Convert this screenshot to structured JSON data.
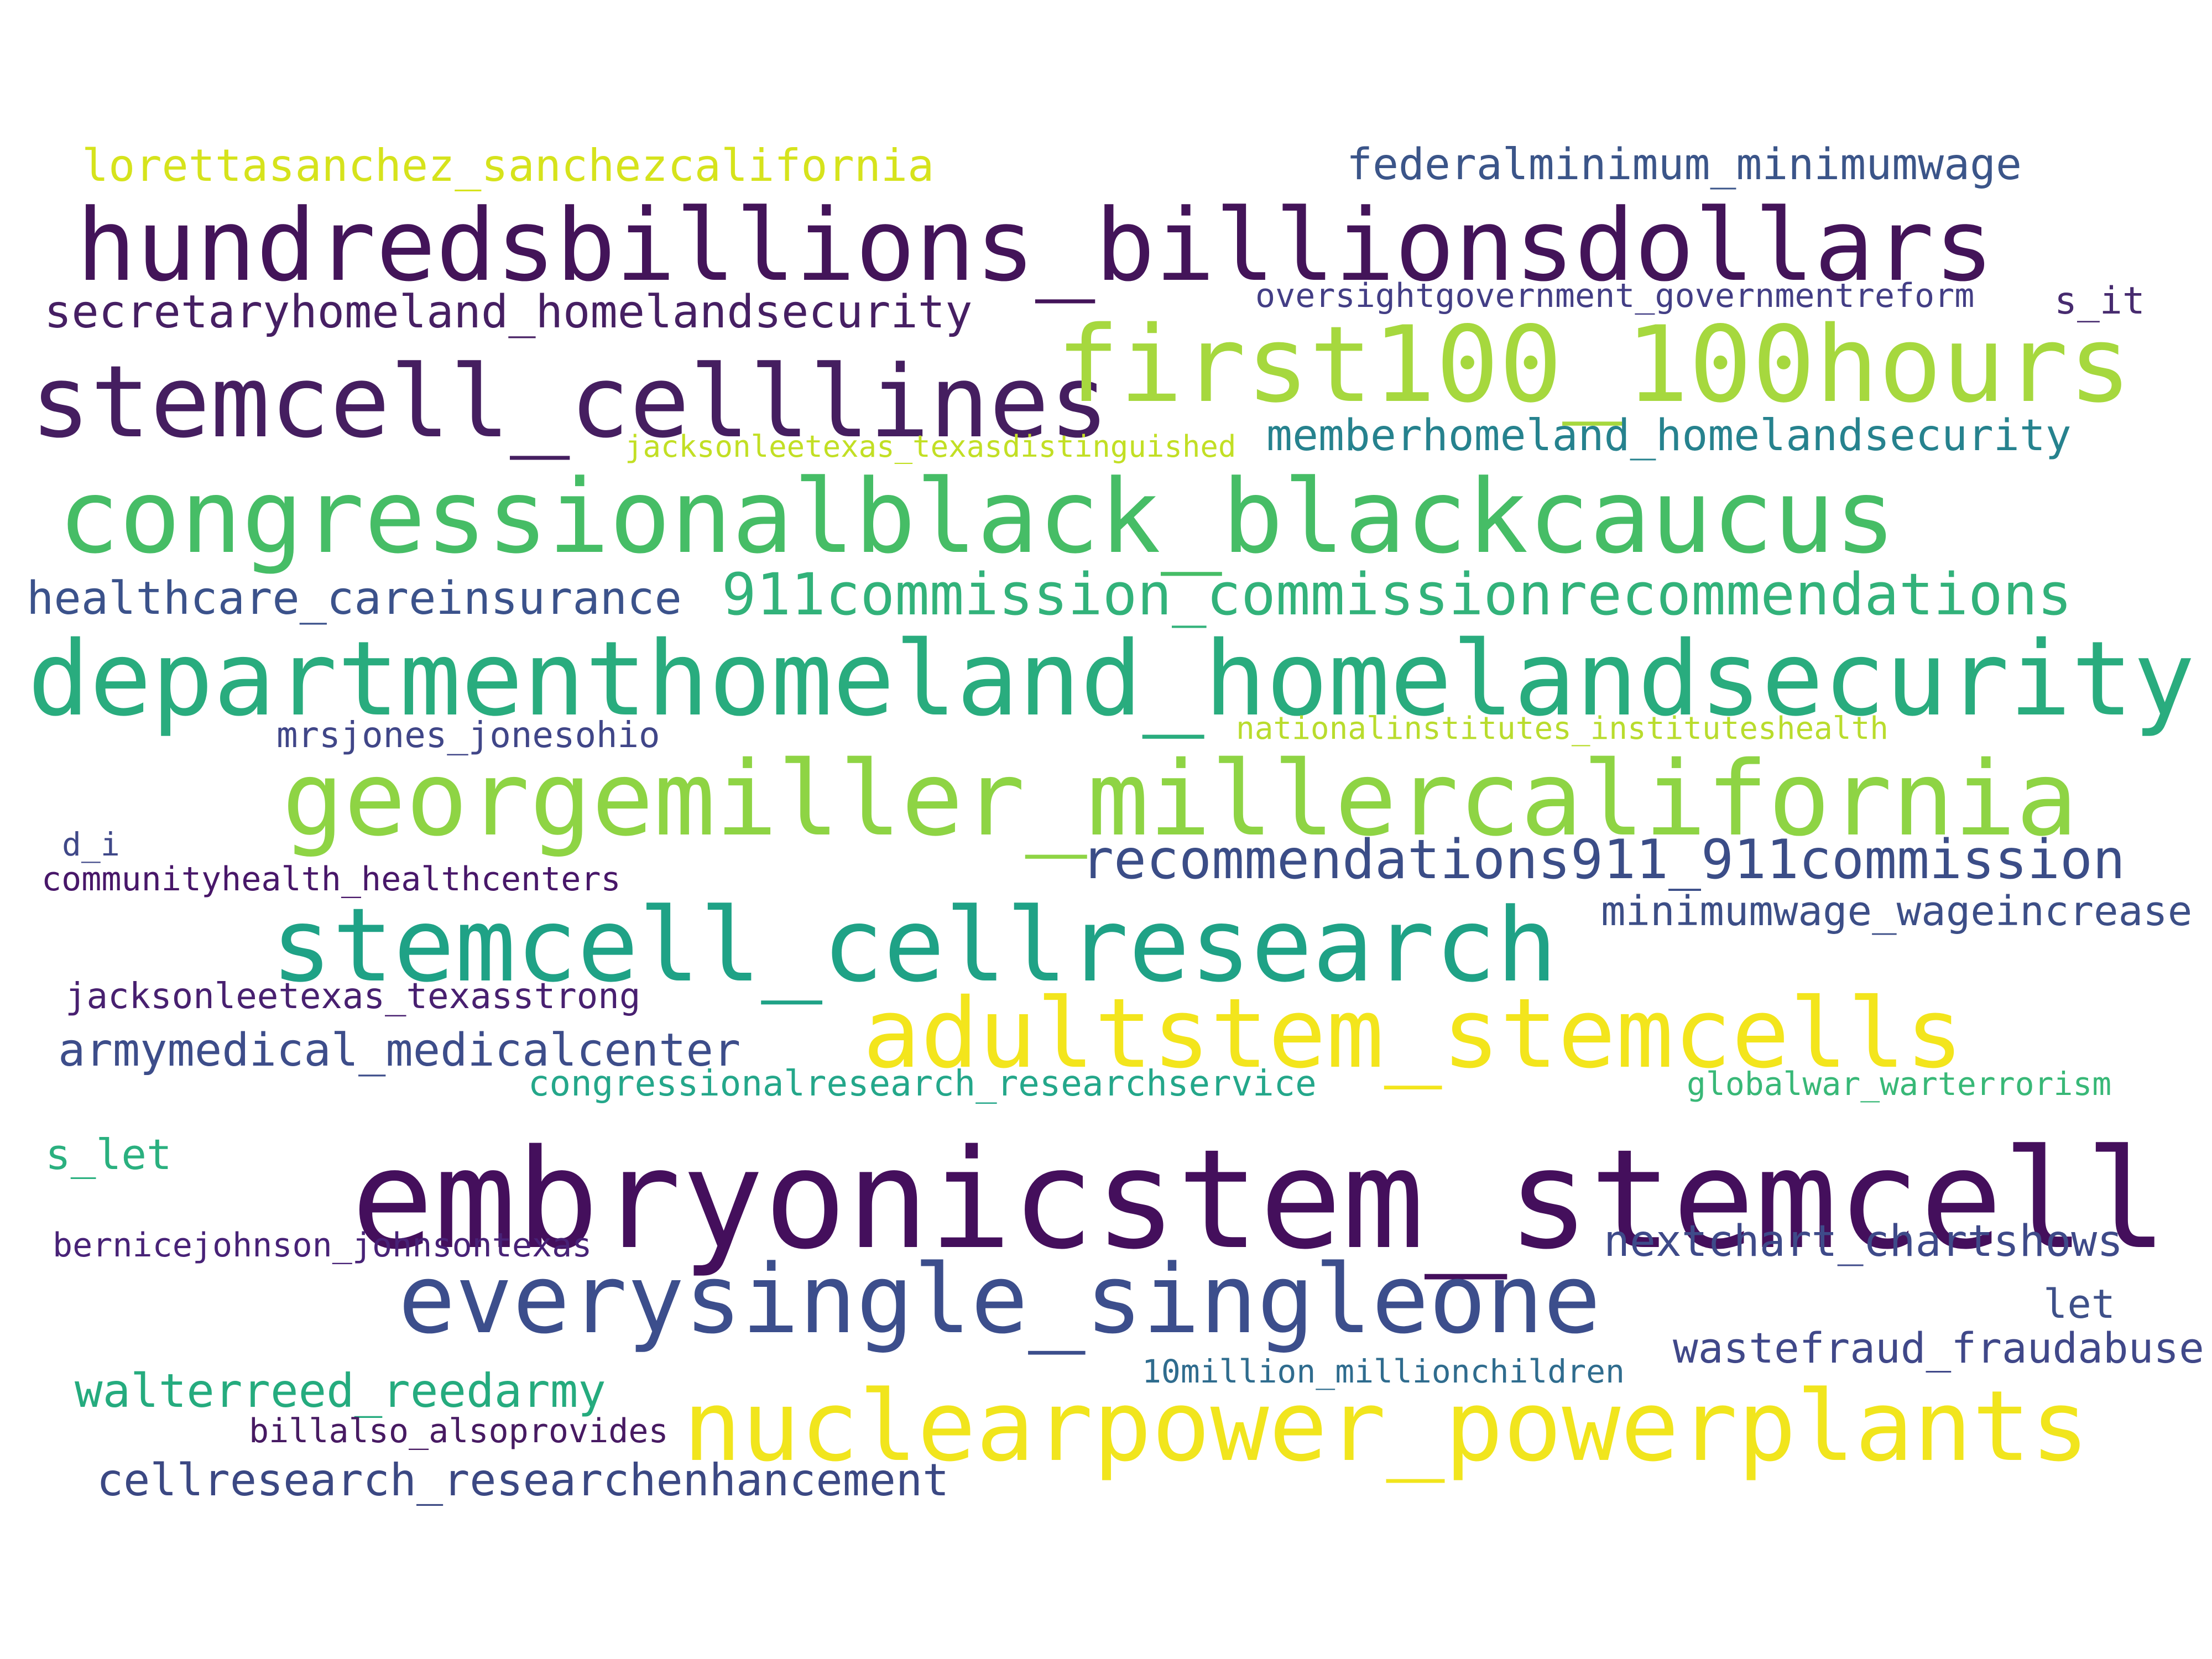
{
  "words": [
    {
      "text": "embryonicstem_stemcell",
      "color": "#440f5c"
    },
    {
      "text": "hundredsbillions_billionsdollars",
      "color": "#431459"
    },
    {
      "text": "stemcell_celllines",
      "color": "#451e60"
    },
    {
      "text": "first100_100hours",
      "color": "#a6d83e"
    },
    {
      "text": "congressionalblack_blackcaucus",
      "color": "#46bd66"
    },
    {
      "text": "departmenthomeland_homelandsecurity",
      "color": "#29ac7e"
    },
    {
      "text": "georgemiller_millercalifornia",
      "color": "#8ed444"
    },
    {
      "text": "stemcell_cellresearch",
      "color": "#1fa286"
    },
    {
      "text": "adultstem_stemcells",
      "color": "#f3e51c"
    },
    {
      "text": "everysingle_singleone",
      "color": "#3c4e8c"
    },
    {
      "text": "nuclearpower_powerplants",
      "color": "#f1e51d"
    },
    {
      "text": "911commission_commissionrecommendations",
      "color": "#32b27a"
    },
    {
      "text": "recommendations911_911commission",
      "color": "#3b4d87"
    },
    {
      "text": "secretaryhomeland_homelandsecurity",
      "color": "#461f63"
    },
    {
      "text": "lorettasanchez_sanchezcalifornia",
      "color": "#d6e31c"
    },
    {
      "text": "federalminimum_minimumwage",
      "color": "#3b5589"
    },
    {
      "text": "memberhomeland_homelandsecurity",
      "color": "#26828e"
    },
    {
      "text": "healthcare_careinsurance",
      "color": "#3b528b"
    },
    {
      "text": "mrsjones_jonesohio",
      "color": "#404688"
    },
    {
      "text": "nationalinstitutes_instituteshealth",
      "color": "#b9dc2d"
    },
    {
      "text": "jacksonleetexas_texasdistinguished",
      "color": "#c2df24"
    },
    {
      "text": "oversightgovernment_governmentreform",
      "color": "#433e85"
    },
    {
      "text": "s_it",
      "color": "#472b6f"
    },
    {
      "text": "minimumwage_wageincrease",
      "color": "#3c4e87"
    },
    {
      "text": "communityhealth_healthcenters",
      "color": "#481769"
    },
    {
      "text": "d_i",
      "color": "#3f4888"
    },
    {
      "text": "jacksonleetexas_texasstrong",
      "color": "#482070"
    },
    {
      "text": "armymedical_medicalcenter",
      "color": "#3d4d8a"
    },
    {
      "text": "congressionalresearch_researchservice",
      "color": "#24a78a"
    },
    {
      "text": "globalwar_warterrorism",
      "color": "#38b877"
    },
    {
      "text": "s_let",
      "color": "#2ab07f"
    },
    {
      "text": "bernicejohnson_johnsontexas",
      "color": "#482277"
    },
    {
      "text": "nextchart_chartshows",
      "color": "#3e4a89"
    },
    {
      "text": "let",
      "color": "#3e5089"
    },
    {
      "text": "wastefraud_fraudabuse",
      "color": "#404889"
    },
    {
      "text": "10million_millionchildren",
      "color": "#2f6c8e"
    },
    {
      "text": "walterreed_reedarmy",
      "color": "#25ab7e"
    },
    {
      "text": "billalso_alsoprovides",
      "color": "#471a62"
    },
    {
      "text": "cellresearch_researchenhancement",
      "color": "#3b4883"
    }
  ]
}
